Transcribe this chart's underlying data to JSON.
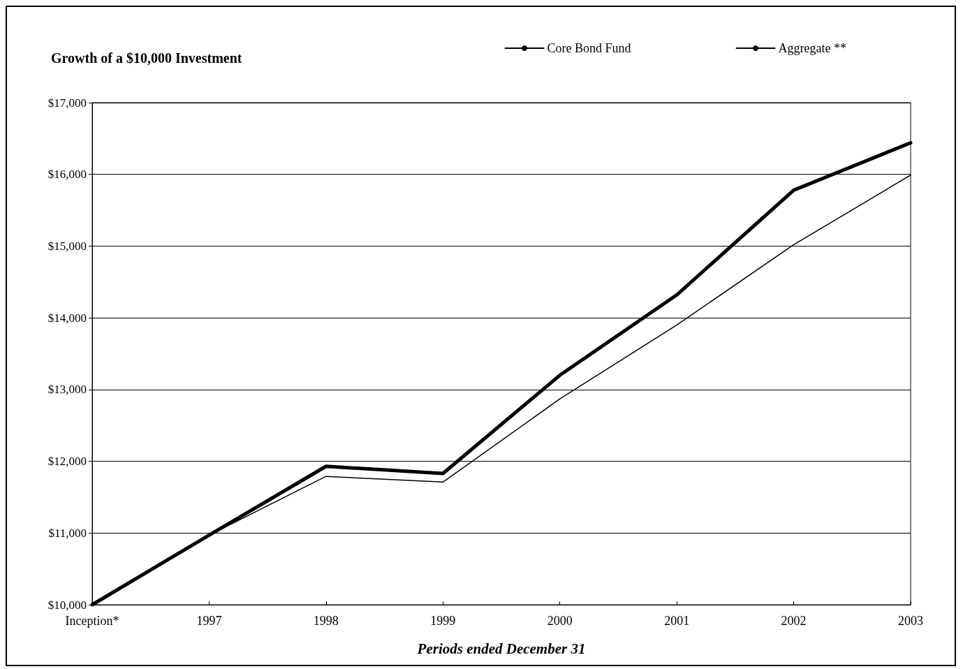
{
  "chart_data": {
    "type": "line",
    "title": "Growth of a $10,000 Investment",
    "xlabel": "Periods ended December 31",
    "categories": [
      "Inception*",
      "1997",
      "1998",
      "1999",
      "2000",
      "2001",
      "2002",
      "2003"
    ],
    "series": [
      {
        "name": "Core Bond Fund",
        "color": "#000000",
        "values": [
          10000,
          10970,
          11790,
          11710,
          12870,
          13900,
          15020,
          15990
        ]
      },
      {
        "name": "Aggregate **",
        "color": "#000000",
        "values": [
          10000,
          10970,
          11930,
          11830,
          13200,
          14320,
          15780,
          16440
        ]
      }
    ],
    "ylim": [
      10000,
      17000
    ],
    "yticks": [
      {
        "value": 10000,
        "label": "$10,000"
      },
      {
        "value": 11000,
        "label": "$11,000"
      },
      {
        "value": 12000,
        "label": "$12,000"
      },
      {
        "value": 13000,
        "label": "$13,000"
      },
      {
        "value": 14000,
        "label": "$14,000"
      },
      {
        "value": 15000,
        "label": "$15,000"
      },
      {
        "value": 16000,
        "label": "$16,000"
      },
      {
        "value": 17000,
        "label": "$17,000"
      }
    ],
    "grid": "y",
    "legend": "top right",
    "marker": "none",
    "line_style": "solid"
  }
}
